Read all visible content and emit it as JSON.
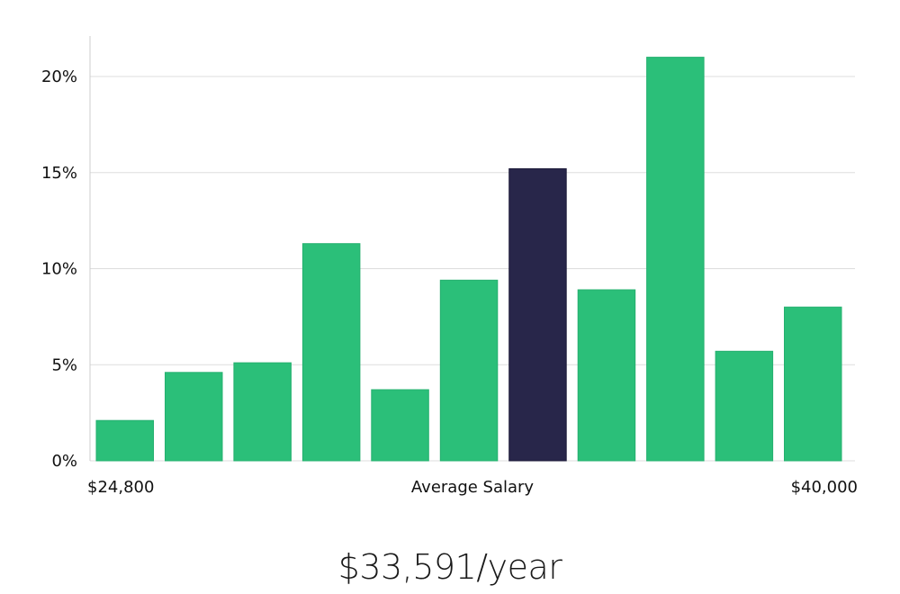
{
  "chart_data": {
    "type": "bar",
    "title": "",
    "xlabel": "Average Salary",
    "ylabel": "",
    "x_min_label": "$24,800",
    "x_max_label": "$40,000",
    "ylim": [
      0,
      22
    ],
    "yticks": [
      0,
      5,
      10,
      15,
      20
    ],
    "ytick_labels": [
      "0%",
      "5%",
      "10%",
      "15%",
      "20%"
    ],
    "values": [
      2.1,
      4.6,
      5.1,
      11.3,
      3.7,
      9.4,
      15.2,
      8.9,
      21.0,
      5.7,
      8.0
    ],
    "highlight_index": 6,
    "colors": {
      "bar": "#2bbf79",
      "highlight": "#28264a",
      "grid": "#dddddd",
      "axis": "#cccccc"
    }
  },
  "summary": {
    "text": "$33,591/year"
  }
}
